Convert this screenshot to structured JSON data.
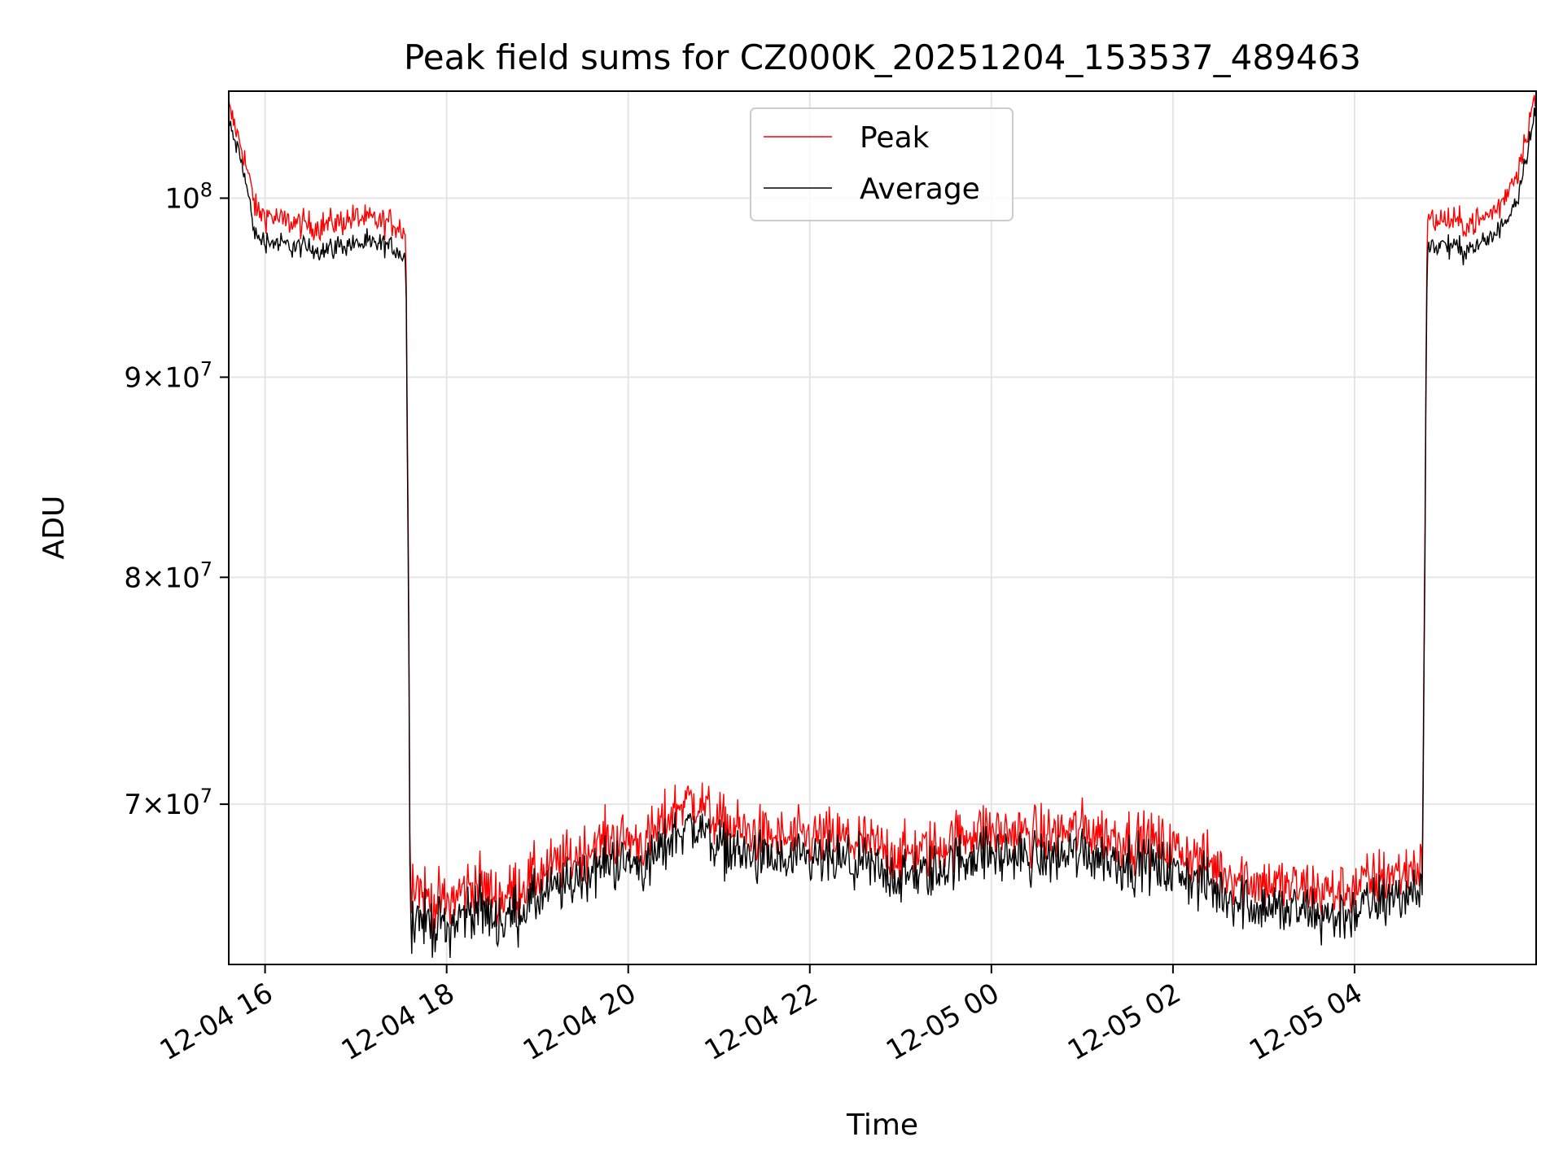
{
  "chart_data": {
    "type": "line",
    "title": "Peak field sums for CZ000K_20251204_153537_489463",
    "xlabel": "Time",
    "ylabel": "ADU",
    "yscale": "log",
    "grid": true,
    "legend_position": "top-center",
    "x_unit": "hours since 2025-12-04 00:00",
    "xlim": [
      15.6,
      30.0
    ],
    "ylim": [
      63700000,
      106500000
    ],
    "x_ticks": [
      {
        "value": 16,
        "label": "12-04 16"
      },
      {
        "value": 18,
        "label": "12-04 18"
      },
      {
        "value": 20,
        "label": "12-04 20"
      },
      {
        "value": 22,
        "label": "12-04 22"
      },
      {
        "value": 24,
        "label": "12-05 00"
      },
      {
        "value": 26,
        "label": "12-05 02"
      },
      {
        "value": 28,
        "label": "12-05 04"
      }
    ],
    "y_ticks": [
      {
        "value": 70000000,
        "mantissa": "7",
        "base": "10",
        "exp": "7"
      },
      {
        "value": 80000000,
        "mantissa": "8",
        "base": "10",
        "exp": "7"
      },
      {
        "value": 90000000,
        "mantissa": "9",
        "base": "10",
        "exp": "7"
      },
      {
        "value": 100000000,
        "mantissa": "",
        "base": "10",
        "exp": "8"
      }
    ],
    "series": [
      {
        "name": "Peak",
        "color": "#ff0000",
        "x": [
          15.6,
          15.75,
          15.9,
          16.2,
          16.6,
          17.0,
          17.4,
          17.55,
          17.6,
          17.8,
          18.0,
          18.3,
          18.6,
          19.0,
          19.4,
          19.8,
          20.2,
          20.6,
          20.8,
          21.0,
          21.4,
          21.8,
          22.2,
          22.6,
          23.0,
          23.4,
          23.8,
          24.2,
          24.6,
          25.0,
          25.4,
          25.8,
          26.2,
          26.6,
          27.0,
          27.4,
          27.8,
          28.2,
          28.5,
          28.75,
          28.8,
          29.0,
          29.2,
          29.4,
          29.6,
          29.8,
          30.0
        ],
        "values": [
          105000000,
          102500000,
          98800000,
          98200000,
          97900000,
          98400000,
          98100000,
          97600000,
          66800000,
          65800000,
          65700000,
          66500000,
          65900000,
          66800000,
          67500000,
          68300000,
          68100000,
          69800000,
          69700000,
          68900000,
          68400000,
          68200000,
          68300000,
          68100000,
          67600000,
          67900000,
          68600000,
          68500000,
          68400000,
          68700000,
          68300000,
          68100000,
          67600000,
          66900000,
          66500000,
          66300000,
          66100000,
          66600000,
          66900000,
          67200000,
          98200000,
          98300000,
          98000000,
          98300000,
          99100000,
          101200000,
          106000000
        ]
      },
      {
        "name": "Average",
        "color": "#000000",
        "x": [
          15.6,
          15.75,
          15.9,
          16.2,
          16.6,
          17.0,
          17.4,
          17.55,
          17.6,
          17.8,
          18.0,
          18.3,
          18.6,
          19.0,
          19.4,
          19.8,
          20.2,
          20.6,
          20.8,
          21.0,
          21.4,
          21.8,
          22.2,
          22.6,
          23.0,
          23.4,
          23.8,
          24.2,
          24.6,
          25.0,
          25.4,
          25.8,
          26.2,
          26.6,
          27.0,
          27.4,
          27.8,
          28.2,
          28.5,
          28.75,
          28.8,
          29.0,
          29.2,
          29.4,
          29.6,
          29.8,
          30.0
        ],
        "values": [
          104500000,
          102000000,
          97700000,
          97300000,
          97000000,
          97400000,
          97200000,
          96600000,
          65600000,
          65300000,
          65100000,
          65900000,
          65300000,
          66200000,
          66900000,
          67700000,
          67500000,
          69100000,
          69000000,
          68300000,
          67800000,
          67600000,
          67700000,
          67500000,
          67000000,
          67300000,
          68000000,
          67900000,
          67800000,
          68100000,
          67700000,
          67500000,
          67000000,
          66300000,
          65900000,
          65700000,
          65500000,
          66000000,
          66300000,
          66600000,
          97200000,
          97300000,
          97000000,
          97300000,
          98100000,
          100200000,
          105500000
        ]
      }
    ]
  }
}
